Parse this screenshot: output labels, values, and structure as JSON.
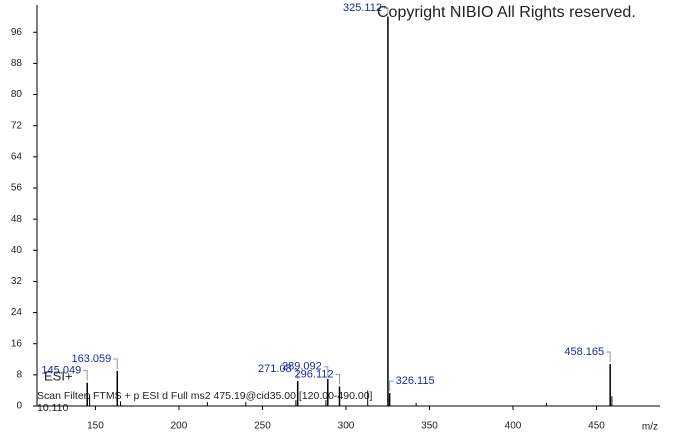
{
  "chart_data": {
    "type": "stem",
    "copyright": "Copyright NIBIO All Rights reserved.",
    "ion_mode": "ESI+",
    "scan_filter": "Scan Filter: FTMS + p ESI d Full ms2 475.19@cid35.00 [120.00-490.00]",
    "intensity_note": "10.110",
    "x_label": "m/z",
    "peaks": {
      "x": [
        145.049,
        163.059,
        271.08,
        289.092,
        296.112,
        325.112,
        326.115,
        458.165
      ],
      "values": [
        6,
        9,
        6.4,
        7,
        5,
        100,
        3.3,
        10.8
      ]
    },
    "minor_peaks": {
      "x": [
        146.5,
        165,
        217,
        240,
        270,
        288,
        313,
        342,
        420,
        459.2
      ],
      "values": [
        3,
        1.2,
        1,
        1,
        1.5,
        1.5,
        4,
        0.8,
        0.8,
        2.5
      ]
    },
    "color": "#000000",
    "label_color": "#1a2a9a",
    "xlim": [
      115,
      488
    ],
    "ylim": [
      0,
      103
    ],
    "xticks": [
      150,
      200,
      250,
      300,
      350,
      400,
      450
    ],
    "yticks": [
      0,
      8,
      16,
      24,
      32,
      40,
      48,
      56,
      64,
      72,
      80,
      88,
      96
    ]
  }
}
